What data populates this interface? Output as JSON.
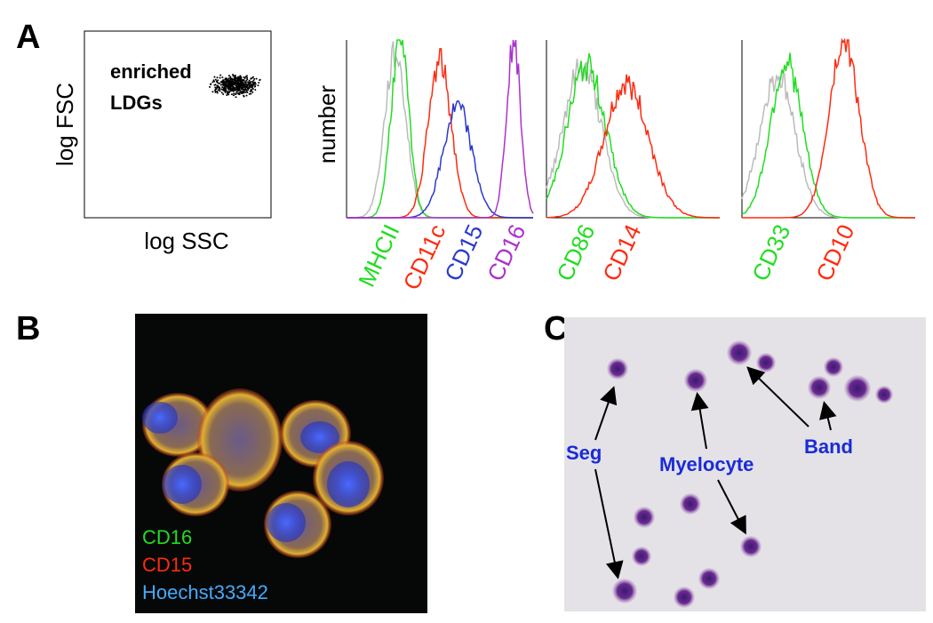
{
  "panel_a": {
    "label": "A",
    "scatter": {
      "y_label": "log FSC",
      "x_label": "log SSC",
      "annotation": [
        "enriched",
        "LDGs"
      ]
    },
    "histograms": {
      "y_label": "number",
      "groups": [
        [
          "MHCII",
          "CD11c",
          "CD15",
          "CD16"
        ],
        [
          "CD86",
          "CD14"
        ],
        [
          "CD33",
          "CD10"
        ]
      ]
    }
  },
  "panel_b": {
    "label": "B",
    "legend": [
      "CD16",
      "CD15",
      "Hoechst33342"
    ]
  },
  "panel_c": {
    "label": "C",
    "annotations": [
      "Seg",
      "Myelocyte",
      "Band"
    ]
  }
}
